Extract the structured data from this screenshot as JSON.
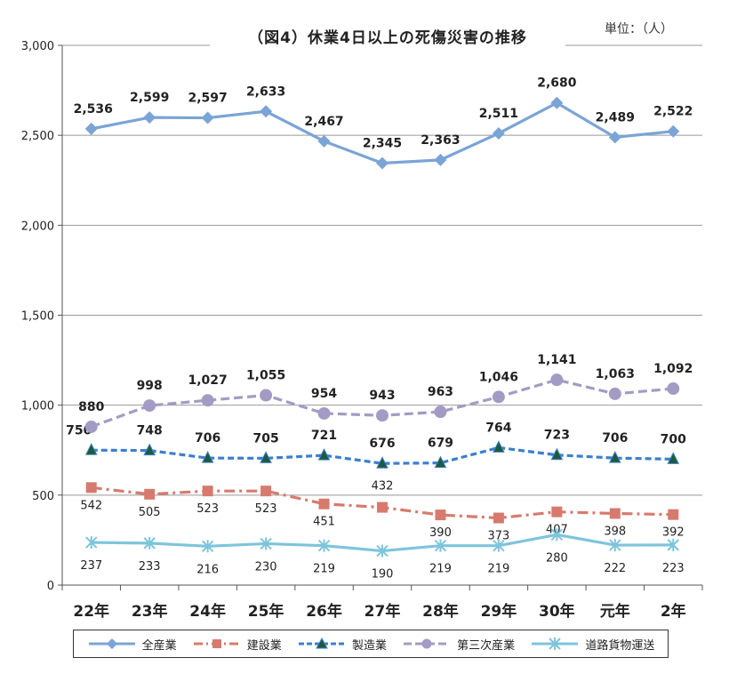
{
  "chart_data": {
    "type": "line",
    "title": "（図4）休業4日以上の死傷災害の推移",
    "unit_label": "単位：（人）",
    "categories": [
      "22年",
      "23年",
      "24年",
      "25年",
      "26年",
      "27年",
      "28年",
      "29年",
      "30年",
      "元年",
      "2年"
    ],
    "ylim": [
      0,
      3000
    ],
    "yticks": [
      0,
      500,
      1000,
      1500,
      2000,
      2500,
      3000
    ],
    "ytick_labels": [
      "0",
      "500",
      "1,000",
      "1,500",
      "2,000",
      "2,500",
      "3,000"
    ],
    "grid": "horizontal",
    "legend_position": "bottom",
    "series": [
      {
        "name": "全産業",
        "color": "#7ba4d6",
        "marker": "diamond",
        "dash": "solid",
        "values": [
          2536,
          2599,
          2597,
          2633,
          2467,
          2345,
          2363,
          2511,
          2680,
          2489,
          2522
        ],
        "labels": [
          "2,536",
          "2,599",
          "2,597",
          "2,633",
          "2,467",
          "2,345",
          "2,363",
          "2,511",
          "2,680",
          "2,489",
          "2,522"
        ],
        "label_style": "bold",
        "label_side": "above"
      },
      {
        "name": "建設業",
        "color": "#d77a6e",
        "marker": "square",
        "dash": "dashdot",
        "values": [
          542,
          505,
          523,
          523,
          451,
          432,
          390,
          373,
          407,
          398,
          392
        ],
        "labels": [
          "542",
          "505",
          "523",
          "523",
          "451",
          "432",
          "390",
          "373",
          "407",
          "398",
          "392"
        ],
        "label_style": "normal",
        "label_side": "mixed"
      },
      {
        "name": "製造業",
        "color": "#3a7fcf",
        "marker": "triangle",
        "dash": "dash",
        "values": [
          750,
          748,
          706,
          705,
          721,
          676,
          679,
          764,
          723,
          706,
          700
        ],
        "labels": [
          "750",
          "748",
          "706",
          "705",
          "721",
          "676",
          "679",
          "764",
          "723",
          "706",
          "700"
        ],
        "label_style": "bold",
        "label_side": "above"
      },
      {
        "name": "第三次産業",
        "color": "#a49bc4",
        "marker": "circle",
        "dash": "longdash",
        "values": [
          880,
          998,
          1027,
          1055,
          954,
          943,
          963,
          1046,
          1141,
          1063,
          1092
        ],
        "labels": [
          "880",
          "998",
          "1,027",
          "1,055",
          "954",
          "943",
          "963",
          "1,046",
          "1,141",
          "1,063",
          "1,092"
        ],
        "label_style": "bold",
        "label_side": "above"
      },
      {
        "name": "道路貨物運送",
        "color": "#7ec4dc",
        "marker": "asterisk",
        "dash": "solid",
        "values": [
          237,
          233,
          216,
          230,
          219,
          190,
          219,
          219,
          280,
          222,
          223
        ],
        "labels": [
          "237",
          "233",
          "216",
          "230",
          "219",
          "190",
          "219",
          "219",
          "280",
          "222",
          "223"
        ],
        "label_style": "normal",
        "label_side": "below"
      }
    ]
  }
}
